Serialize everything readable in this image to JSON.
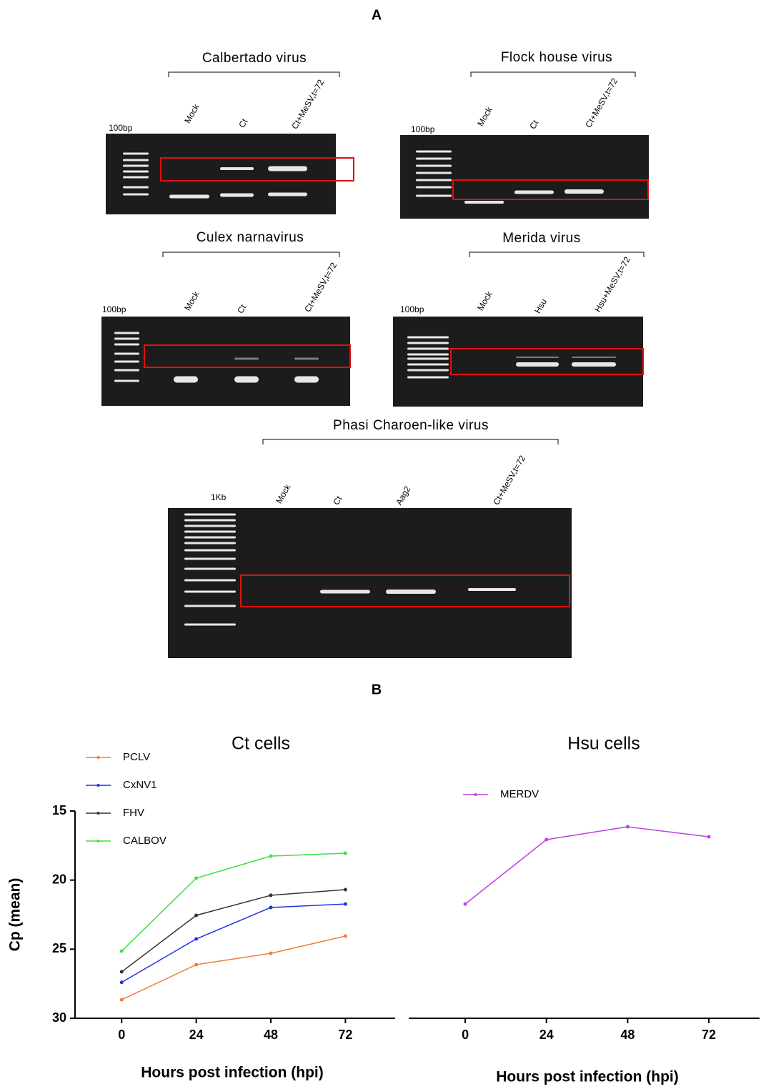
{
  "panel_labels": [
    "A",
    "B"
  ],
  "gels": [
    {
      "title": "Calbertado virus",
      "ladder": "100bp",
      "lanes": [
        "Mock",
        "Ct",
        "Ct+MeSV,t=72"
      ]
    },
    {
      "title": "Flock house virus",
      "ladder": "100bp",
      "lanes": [
        "Mock",
        "Ct",
        "Ct+MeSV,t=72"
      ]
    },
    {
      "title": "Culex narnavirus",
      "ladder": "100bp",
      "lanes": [
        "Mock",
        "Ct",
        "Ct+MeSV,t=72"
      ]
    },
    {
      "title": "Merida virus",
      "ladder": "100bp",
      "lanes": [
        "Mock",
        "Hsu",
        "Hsu+MeSV,t=72"
      ]
    },
    {
      "title": "Phasi Charoen-like virus",
      "ladder": "1Kb",
      "lanes": [
        "Mock",
        "Ct",
        "Aag2",
        "Ct+MeSV,t=72"
      ]
    }
  ],
  "chart_data": [
    {
      "type": "line",
      "title": "Ct cells",
      "x_label": "Hours post infection (hpi)",
      "y_label": "Cp (mean)",
      "x": [
        0,
        24,
        48,
        72
      ],
      "xlim": [
        -15,
        88
      ],
      "xticks": [
        0,
        24,
        48,
        72
      ],
      "ylim": [
        15,
        30
      ],
      "yticks": [
        15,
        20,
        25,
        30
      ],
      "y_inverted": true,
      "series": [
        {
          "name": "PCLV",
          "color": "#f07d3c",
          "values": [
            28.66,
            26.12,
            25.3,
            24.05
          ]
        },
        {
          "name": "CxNV1",
          "color": "#2230e0",
          "values": [
            27.4,
            24.26,
            21.98,
            21.73
          ]
        },
        {
          "name": "FHV",
          "color": "#333333",
          "values": [
            26.64,
            22.55,
            21.1,
            20.69
          ]
        },
        {
          "name": "CALBOV",
          "color": "#3ee03e",
          "values": [
            25.14,
            19.86,
            18.26,
            18.05
          ]
        }
      ]
    },
    {
      "type": "line",
      "title": "Hsu cells",
      "x_label": "Hours post infection (hpi)",
      "x": [
        0,
        24,
        48,
        72
      ],
      "xlim": [
        -16.7,
        87
      ],
      "xticks": [
        0,
        24,
        48,
        72
      ],
      "ylim": [
        15,
        30
      ],
      "y_inverted": true,
      "series": [
        {
          "name": "MERDV",
          "color": "#c040e8",
          "values": [
            21.73,
            17.07,
            16.14,
            16.86
          ]
        }
      ]
    }
  ]
}
